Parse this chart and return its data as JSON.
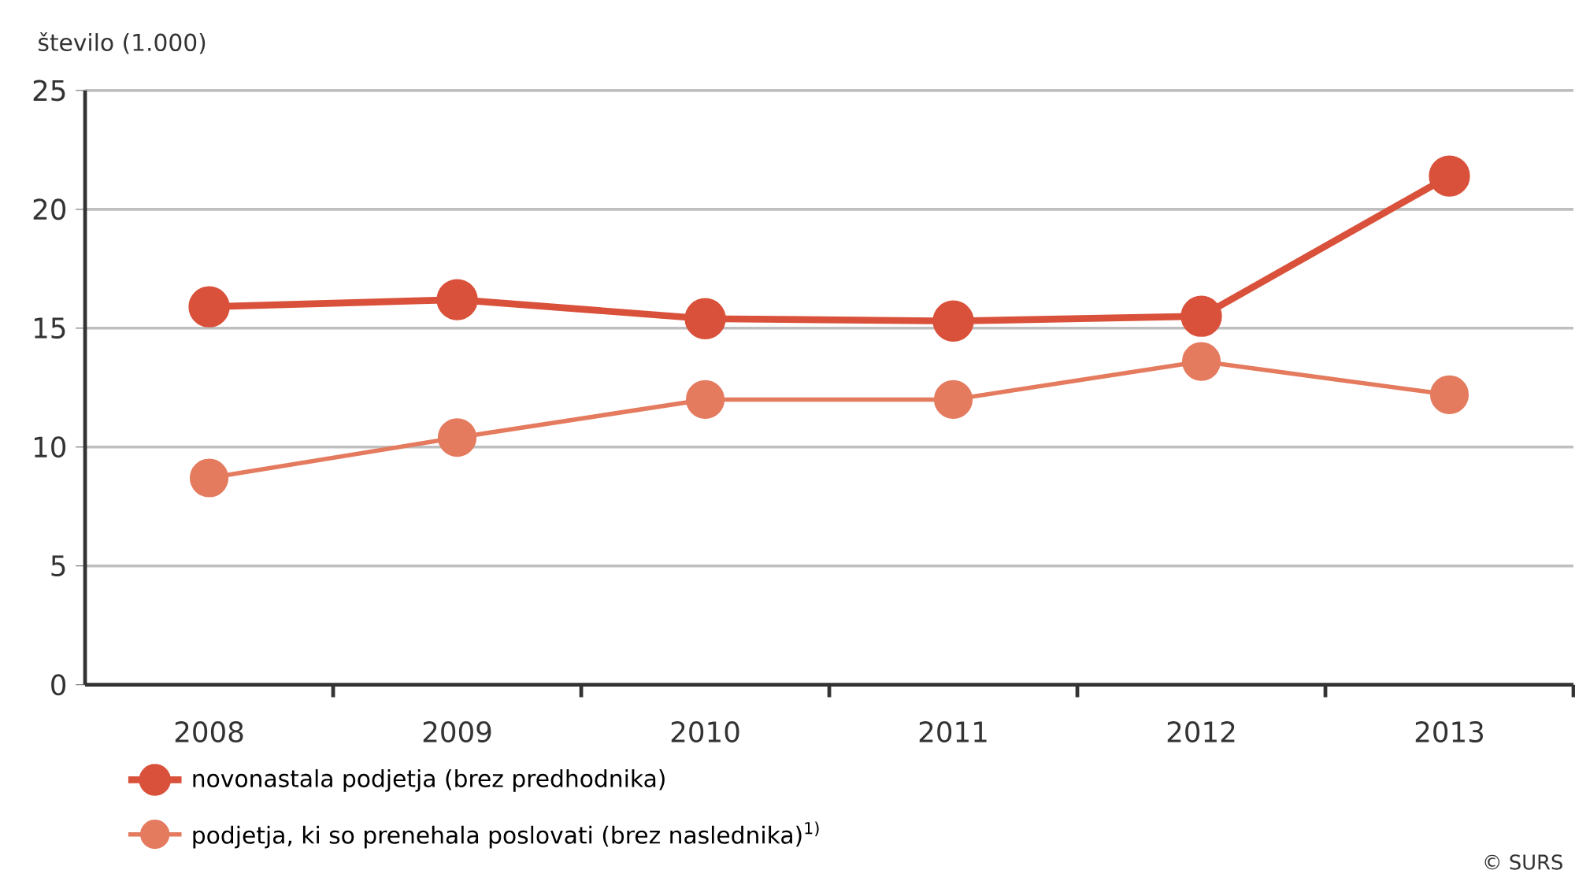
{
  "chart_data": {
    "type": "line",
    "ylabel": "število (1.000)",
    "categories": [
      "2008",
      "2009",
      "2010",
      "2011",
      "2012",
      "2013"
    ],
    "series": [
      {
        "name": "novonastala podjetja (brez predhodnika)",
        "color": "#d9513a",
        "values": [
          15.9,
          16.2,
          15.4,
          15.3,
          15.5,
          21.4
        ]
      },
      {
        "name": "podjetja, ki so prenehala poslovati (brez naslednika)$^{1)}$",
        "color": "#e47a5e",
        "values": [
          8.7,
          10.4,
          12.0,
          12.0,
          13.6,
          12.2
        ]
      }
    ],
    "ylim": [
      0,
      25
    ],
    "yticks": [
      0,
      5,
      10,
      15,
      20,
      25
    ],
    "grid": "y",
    "legend": "bottom",
    "marker": "circle",
    "line_style": "solid",
    "annotations": [
      "© SURS"
    ]
  }
}
